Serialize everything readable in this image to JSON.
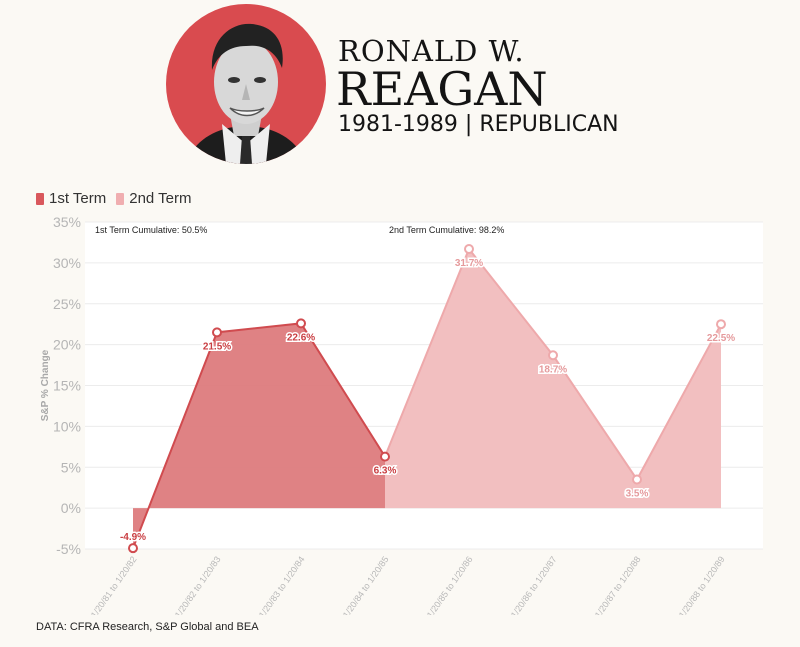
{
  "header": {
    "name_line1": "RONALD W.",
    "name_line2": "REAGAN",
    "years_party": "1981-1989  |  REPUBLICAN"
  },
  "legend": [
    {
      "label": "1st Term",
      "color": "#d9585c"
    },
    {
      "label": "2nd Term",
      "color": "#f0aeb0"
    }
  ],
  "colors": {
    "term1_fill": "#dd7b7d",
    "term1_line": "#d04b4f",
    "term2_fill": "#f2bfc0",
    "term2_line": "#eea9ab"
  },
  "source": "DATA: CFRA Research, S&P Global and BEA",
  "chart_data": {
    "type": "area",
    "ylabel": "S&P % Change",
    "ylim": [
      -5,
      35
    ],
    "yticks": [
      -5,
      0,
      5,
      10,
      15,
      20,
      25,
      30,
      35
    ],
    "categories": [
      "1/20/81 to 1/20/82",
      "1/20/82 to 1/20/83",
      "1/20/83 to 1/20/84",
      "1/20/84 to 1/20/85",
      "1/20/85 to 1/20/86",
      "1/20/86 to 1/20/87",
      "1/20/87 to 1/20/88",
      "1/20/88 to 1/20/89"
    ],
    "values": [
      -4.9,
      21.5,
      22.6,
      6.3,
      31.7,
      18.7,
      3.5,
      22.5
    ],
    "value_labels": [
      "-4.9%",
      "21.5%",
      "22.6%",
      "6.3%",
      "31.7%",
      "18.7%",
      "3.5%",
      "22.5%"
    ],
    "terms": [
      1,
      1,
      1,
      1,
      2,
      2,
      2,
      2
    ],
    "annotations": [
      {
        "text": "1st Term Cumulative: 50.5%",
        "term": 1
      },
      {
        "text": "2nd Term Cumulative: 98.2%",
        "term": 2
      }
    ],
    "grid": true
  }
}
